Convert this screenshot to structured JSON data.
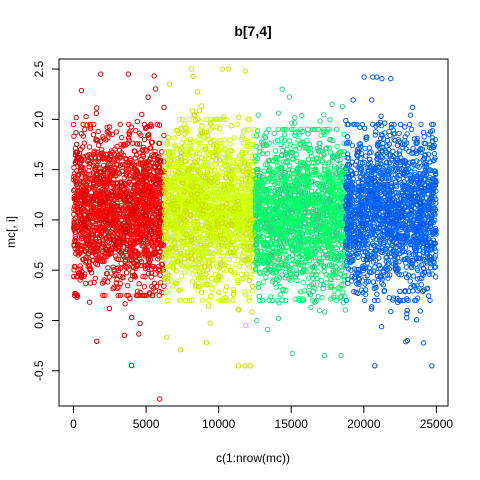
{
  "chart_data": {
    "type": "scatter",
    "title": "b[7,4]",
    "xlabel": "c(1:nrow(mc))",
    "ylabel": "mc[, i]",
    "xlim": [
      0,
      25000
    ],
    "ylim": [
      -0.85,
      2.6
    ],
    "x_ticks": [
      0,
      5000,
      10000,
      15000,
      20000,
      25000
    ],
    "y_ticks": [
      -0.5,
      0.0,
      0.5,
      1.0,
      1.5,
      2.0,
      2.5
    ],
    "x_tick_labels": [
      "0",
      "5000",
      "10000",
      "15000",
      "20000",
      "25000"
    ],
    "y_tick_labels": [
      "-0.5",
      "0.0",
      "0.5",
      "1.0",
      "1.5",
      "2.0",
      "2.5"
    ],
    "grid": false,
    "legend": "none",
    "marker": "open-circle",
    "series": [
      {
        "x_range": [
          1,
          6250
        ],
        "color_core": "#FF0000",
        "color_edge": "#CC0000",
        "y_center": 1.08,
        "y_core_range": [
          0.35,
          1.85
        ],
        "y_extent": [
          -0.78,
          2.45
        ]
      },
      {
        "x_range": [
          6251,
          12500
        ],
        "color_core": "#CCFF00",
        "color_edge": "#CCE000",
        "y_center": 1.1,
        "y_core_range": [
          0.3,
          1.9
        ],
        "y_extent": [
          -0.45,
          2.5
        ]
      },
      {
        "x_range": [
          12501,
          18750
        ],
        "color_core": "#00FF66",
        "color_edge": "#33CC88",
        "y_center": 1.05,
        "y_core_range": [
          0.3,
          1.8
        ],
        "y_extent": [
          -0.35,
          2.3
        ]
      },
      {
        "x_range": [
          18751,
          25000
        ],
        "color_core": "#0066FF",
        "color_edge": "#0055DD",
        "y_center": 1.08,
        "y_core_range": [
          0.3,
          1.85
        ],
        "y_extent": [
          -0.45,
          2.42
        ]
      }
    ]
  }
}
